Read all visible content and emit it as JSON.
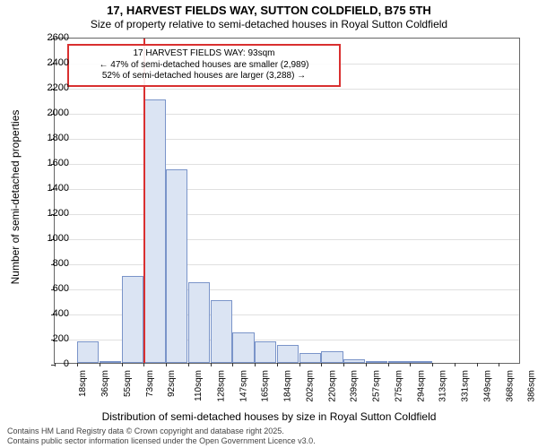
{
  "title_main": "17, HARVEST FIELDS WAY, SUTTON COLDFIELD, B75 5TH",
  "title_sub": "Size of property relative to semi-detached houses in Royal Sutton Coldfield",
  "chart": {
    "type": "histogram",
    "ylabel": "Number of semi-detached properties",
    "xlabel": "Distribution of semi-detached houses by size in Royal Sutton Coldfield",
    "ylim": [
      0,
      2600
    ],
    "yticks": [
      0,
      200,
      400,
      600,
      800,
      1000,
      1200,
      1400,
      1600,
      1800,
      2000,
      2200,
      2400,
      2600
    ],
    "xticks": [
      "18sqm",
      "36sqm",
      "55sqm",
      "73sqm",
      "92sqm",
      "110sqm",
      "128sqm",
      "147sqm",
      "165sqm",
      "184sqm",
      "202sqm",
      "220sqm",
      "239sqm",
      "257sqm",
      "275sqm",
      "294sqm",
      "313sqm",
      "331sqm",
      "349sqm",
      "368sqm",
      "386sqm"
    ],
    "bar_values": [
      0,
      175,
      10,
      690,
      2100,
      1540,
      640,
      500,
      240,
      175,
      140,
      80,
      95,
      30,
      15,
      12,
      8,
      5,
      3,
      2,
      2
    ],
    "bar_fill": "#dbe4f3",
    "bar_stroke": "#7a94c9",
    "grid_color": "#e0e0e0",
    "background_color": "#ffffff",
    "bar_width": 0.98
  },
  "marker": {
    "x_index": 4,
    "color": "#d93030"
  },
  "annotation": {
    "line1": "17 HARVEST FIELDS WAY: 93sqm",
    "line2": "← 47% of semi-detached houses are smaller (2,989)",
    "line3": "52% of semi-detached houses are larger (3,288) →",
    "border_color": "#d93030"
  },
  "footer": {
    "line1": "Contains HM Land Registry data © Crown copyright and database right 2025.",
    "line2": "Contains public sector information licensed under the Open Government Licence v3.0."
  }
}
